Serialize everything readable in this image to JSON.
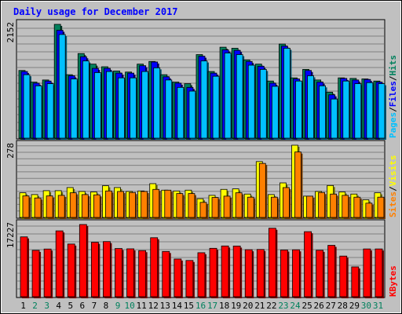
{
  "chart_data": [
    {
      "type": "bar",
      "title": "Daily usage for December 2017",
      "categories": [
        "1",
        "2",
        "3",
        "4",
        "5",
        "6",
        "7",
        "8",
        "9",
        "10",
        "11",
        "12",
        "13",
        "14",
        "15",
        "16",
        "17",
        "18",
        "19",
        "20",
        "21",
        "22",
        "23",
        "24",
        "25",
        "26",
        "27",
        "28",
        "29",
        "30",
        "31"
      ],
      "weekend_days": [
        "2",
        "3",
        "9",
        "10",
        "16",
        "17",
        "23",
        "24",
        "30",
        "31"
      ],
      "y_max_label": "2152",
      "series_labels": [
        "Pages",
        "Files",
        "Hits"
      ],
      "series": [
        {
          "name": "Hits",
          "values": [
            1280,
            1060,
            1100,
            2152,
            1200,
            1600,
            1400,
            1350,
            1270,
            1250,
            1400,
            1450,
            1200,
            1060,
            1030,
            1580,
            1260,
            1720,
            1700,
            1480,
            1400,
            1080,
            1780,
            1140,
            1300,
            1100,
            870,
            1140,
            1130,
            1120,
            1080
          ]
        },
        {
          "name": "Files",
          "values": [
            1260,
            1040,
            1080,
            2040,
            1180,
            1540,
            1320,
            1320,
            1230,
            1230,
            1370,
            1440,
            1160,
            1040,
            960,
            1550,
            1230,
            1670,
            1660,
            1450,
            1360,
            1040,
            1740,
            1120,
            1280,
            1060,
            820,
            1130,
            1100,
            1110,
            1060
          ]
        },
        {
          "name": "Pages",
          "values": [
            1200,
            990,
            1030,
            1960,
            1120,
            1460,
            1240,
            1260,
            1140,
            1140,
            1260,
            1330,
            1100,
            960,
            890,
            1460,
            1170,
            1610,
            1580,
            1380,
            1300,
            980,
            1700,
            1080,
            1180,
            990,
            740,
            1080,
            1030,
            1050,
            1030
          ]
        }
      ],
      "colors": {
        "Hits": "#00805c",
        "Files": "#0000ff",
        "Pages": "#00c0ff"
      }
    },
    {
      "type": "bar",
      "categories": [
        "1",
        "2",
        "3",
        "4",
        "5",
        "6",
        "7",
        "8",
        "9",
        "10",
        "11",
        "12",
        "13",
        "14",
        "15",
        "16",
        "17",
        "18",
        "19",
        "20",
        "21",
        "22",
        "23",
        "24",
        "25",
        "26",
        "27",
        "28",
        "29",
        "30",
        "31"
      ],
      "y_max_label": "278",
      "series_labels": [
        "Sites",
        "Visits"
      ],
      "series": [
        {
          "name": "Visits",
          "values": [
            95,
            88,
            103,
            103,
            115,
            100,
            98,
            122,
            115,
            100,
            102,
            130,
            105,
            102,
            105,
            72,
            85,
            108,
            110,
            90,
            215,
            88,
            133,
            278,
            82,
            100,
            123,
            98,
            90,
            68,
            95
          ]
        },
        {
          "name": "Sites",
          "values": [
            83,
            75,
            83,
            85,
            95,
            88,
            87,
            102,
            100,
            96,
            100,
            108,
            105,
            92,
            92,
            58,
            77,
            82,
            95,
            78,
            208,
            78,
            115,
            252,
            82,
            96,
            90,
            85,
            78,
            55,
            78
          ]
        }
      ],
      "colors": {
        "Visits": "#ffff00",
        "Sites": "#ff8000"
      }
    },
    {
      "type": "bar",
      "categories": [
        "1",
        "2",
        "3",
        "4",
        "5",
        "6",
        "7",
        "8",
        "9",
        "10",
        "11",
        "12",
        "13",
        "14",
        "15",
        "16",
        "17",
        "18",
        "19",
        "20",
        "21",
        "22",
        "23",
        "24",
        "25",
        "26",
        "27",
        "28",
        "29",
        "30",
        "31"
      ],
      "y_max_label": "17227",
      "series_labels": [
        "KBytes"
      ],
      "series": [
        {
          "name": "KBytes",
          "values": [
            14280,
            11060,
            11380,
            15710,
            12570,
            17227,
            12990,
            13160,
            11500,
            11430,
            11000,
            14080,
            10800,
            9000,
            8650,
            10500,
            11550,
            12110,
            12090,
            11220,
            11280,
            16340,
            11150,
            11200,
            15520,
            11080,
            12260,
            9700,
            7120,
            11400,
            11400
          ]
        }
      ],
      "colors": {
        "KBytes": "#ff0000"
      }
    }
  ]
}
